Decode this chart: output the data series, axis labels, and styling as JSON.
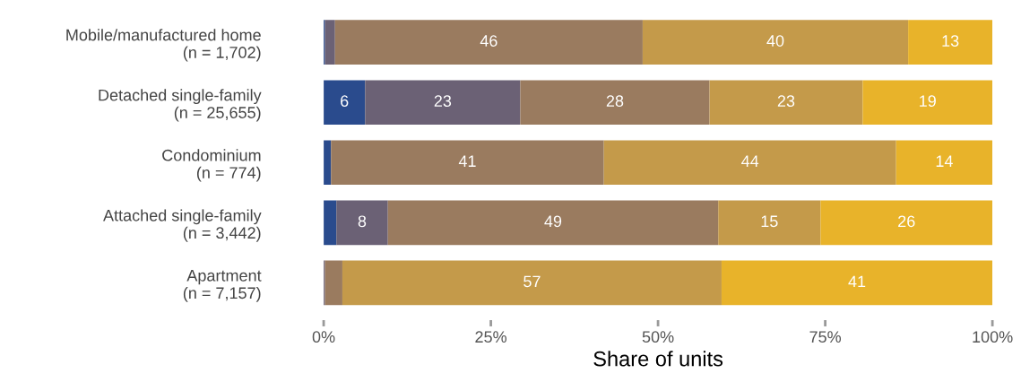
{
  "chart_data": {
    "type": "bar",
    "orientation": "horizontal",
    "stacked": true,
    "xlabel": "Share of units",
    "categories": [
      "Mobile/manufactured home\n(n = 1,702)",
      "Detached single-family\n(n = 25,655)",
      "Condominium\n(n = 774)",
      "Attached single-family\n(n = 3,442)",
      "Apartment\n(n = 7,157)"
    ],
    "series": [
      {
        "color": "#2a4b8d",
        "values": [
          0.2,
          6.2,
          1.1,
          1.9,
          0
        ],
        "value_labels": [
          null,
          "6",
          null,
          null,
          null
        ]
      },
      {
        "color": "#6b6175",
        "values": [
          1.5,
          23.2,
          0,
          7.7,
          0.2
        ],
        "value_labels": [
          null,
          "23",
          null,
          "8",
          null
        ]
      },
      {
        "color": "#9a7b5f",
        "values": [
          46.0,
          28.3,
          40.8,
          49.4,
          2.6
        ],
        "value_labels": [
          "46",
          "28",
          "41",
          "49",
          null
        ]
      },
      {
        "color": "#c49a4a",
        "values": [
          39.7,
          22.9,
          43.7,
          15.3,
          56.7
        ],
        "value_labels": [
          "40",
          "23",
          "44",
          "15",
          "57"
        ]
      },
      {
        "color": "#e8b32a",
        "values": [
          12.6,
          19.4,
          14.4,
          25.7,
          40.5
        ],
        "value_labels": [
          "13",
          "19",
          "14",
          "26",
          "41"
        ]
      }
    ],
    "xlim": [
      0,
      100
    ],
    "xticks": [
      {
        "value": 0,
        "label": "0%"
      },
      {
        "value": 25,
        "label": "25%"
      },
      {
        "value": 50,
        "label": "50%"
      },
      {
        "value": 75,
        "label": "75%"
      },
      {
        "value": 100,
        "label": "100%"
      }
    ],
    "grid": false,
    "legend": false
  }
}
